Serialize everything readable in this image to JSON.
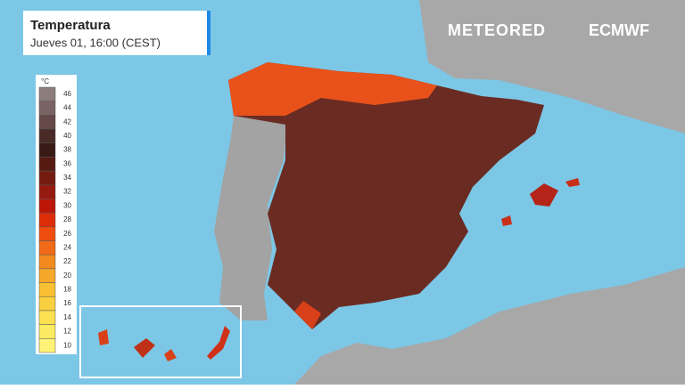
{
  "header": {
    "title": "Temperatura",
    "subtitle": "Jueves 01, 16:00 (CEST)"
  },
  "brand": {
    "left": "METEORED",
    "right": "ECMWF"
  },
  "legend": {
    "unit": "°C",
    "ticks": [
      46,
      44,
      42,
      40,
      38,
      36,
      34,
      32,
      30,
      28,
      26,
      24,
      22,
      20,
      18,
      16,
      14,
      12,
      10
    ],
    "colors": [
      "#8c7c7c",
      "#7a6363",
      "#654848",
      "#4a2a26",
      "#3a1a16",
      "#561a12",
      "#751b10",
      "#961a10",
      "#bd1608",
      "#dd2c08",
      "#ef4c10",
      "#f06a18",
      "#f28a20",
      "#f5a82a",
      "#f8c032",
      "#fad040",
      "#fce050",
      "#fdeb62",
      "#fef276"
    ]
  }
}
